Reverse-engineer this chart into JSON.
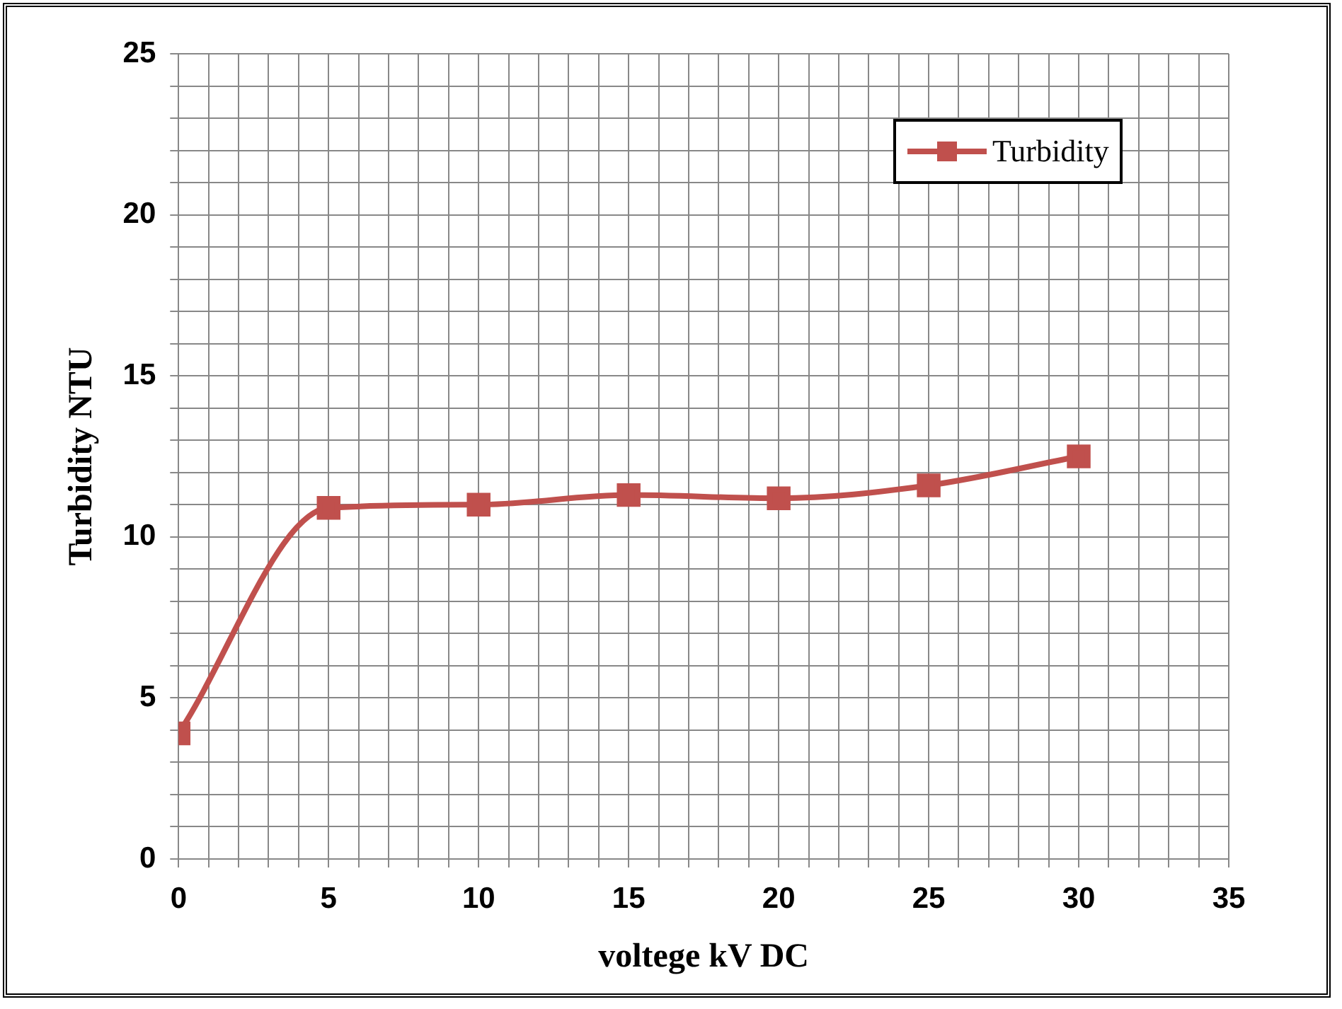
{
  "chart_data": {
    "type": "line",
    "xlabel": "voltege kV DC",
    "ylabel": "Turbidity NTU",
    "x": [
      0,
      5,
      10,
      15,
      20,
      25,
      30
    ],
    "series": [
      {
        "name": "Turbidity",
        "color": "#c0504d",
        "values": [
          3.9,
          10.9,
          11.0,
          11.3,
          11.2,
          11.6,
          12.5
        ]
      }
    ],
    "xlim": [
      0,
      35
    ],
    "xticks": [
      0,
      {
        "value": 1,
        "label": null
      },
      {
        "value": 2,
        "label": null
      },
      {
        "value": 3,
        "label": null
      },
      {
        "value": 4,
        "label": null
      },
      5,
      {
        "value": 6,
        "label": null
      },
      {
        "value": 7,
        "label": null
      },
      {
        "value": 8,
        "label": null
      },
      {
        "value": 9,
        "label": null
      },
      10,
      {
        "value": 11,
        "label": null
      },
      {
        "value": 12,
        "label": null
      },
      {
        "value": 13,
        "label": null
      },
      {
        "value": 14,
        "label": null
      },
      15,
      {
        "value": 16,
        "label": null
      },
      {
        "value": 17,
        "label": null
      },
      {
        "value": 18,
        "label": null
      },
      {
        "value": 19,
        "label": null
      },
      20,
      {
        "value": 21,
        "label": null
      },
      {
        "value": 22,
        "label": null
      },
      {
        "value": 23,
        "label": null
      },
      {
        "value": 24,
        "label": null
      },
      25,
      {
        "value": 26,
        "label": null
      },
      {
        "value": 27,
        "label": null
      },
      {
        "value": 28,
        "label": null
      },
      {
        "value": 29,
        "label": null
      },
      30,
      {
        "value": 31,
        "label": null
      },
      {
        "value": 32,
        "label": null
      },
      {
        "value": 33,
        "label": null
      },
      {
        "value": 34,
        "label": null
      },
      35
    ],
    "ylim": [
      0,
      25
    ],
    "yticks": [
      0,
      {
        "value": 1,
        "label": null
      },
      {
        "value": 2,
        "label": null
      },
      {
        "value": 3,
        "label": null
      },
      {
        "value": 4,
        "label": null
      },
      5,
      {
        "value": 6,
        "label": null
      },
      {
        "value": 7,
        "label": null
      },
      {
        "value": 8,
        "label": null
      },
      {
        "value": 9,
        "label": null
      },
      10,
      {
        "value": 11,
        "label": null
      },
      {
        "value": 12,
        "label": null
      },
      {
        "value": 13,
        "label": null
      },
      {
        "value": 14,
        "label": null
      },
      15,
      {
        "value": 16,
        "label": null
      },
      {
        "value": 17,
        "label": null
      },
      {
        "value": 18,
        "label": null
      },
      {
        "value": 19,
        "label": null
      },
      20,
      {
        "value": 21,
        "label": null
      },
      {
        "value": 22,
        "label": null
      },
      {
        "value": 23,
        "label": null
      },
      {
        "value": 24,
        "label": null
      },
      25
    ],
    "grid": true,
    "legend": "top right",
    "marker": "square",
    "line_style": "solid"
  }
}
